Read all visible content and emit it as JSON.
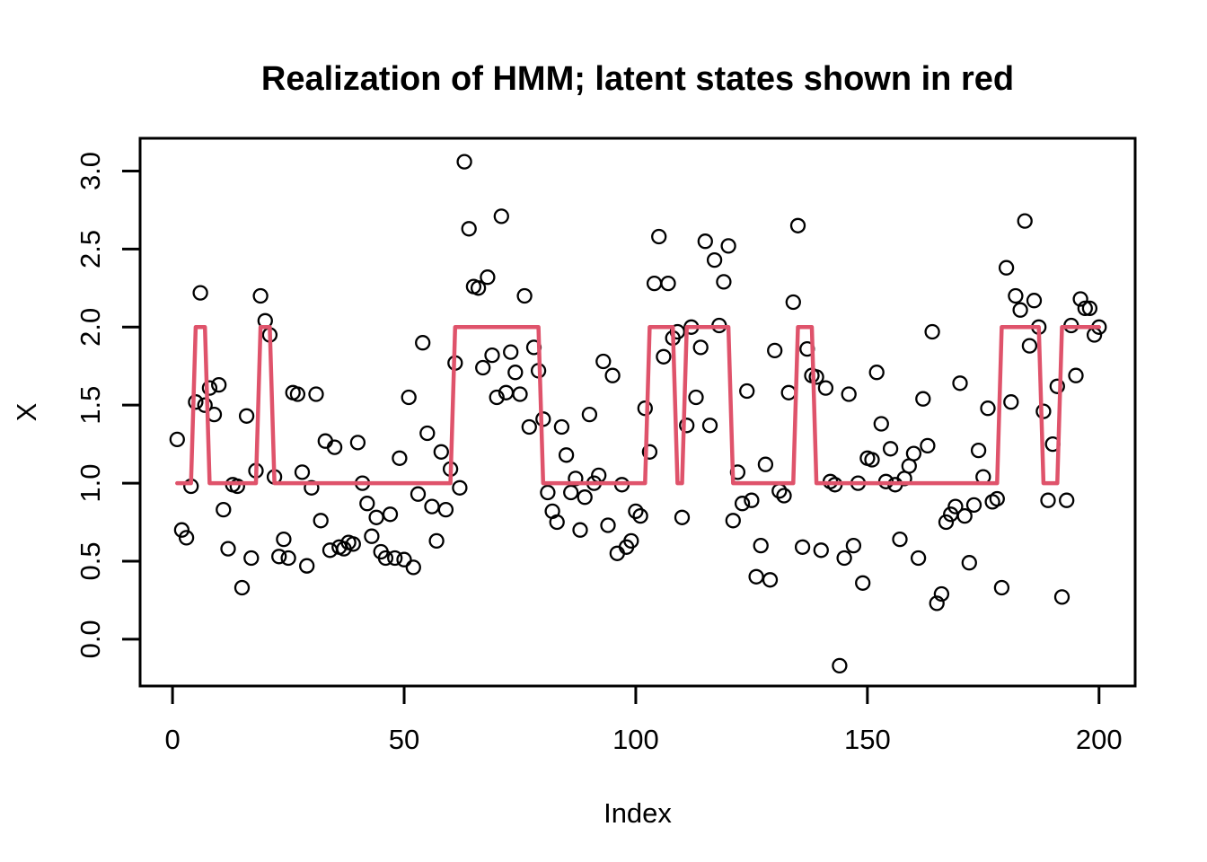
{
  "title": "Realization of HMM; latent states shown in red",
  "colors": {
    "latent_line": "#DF536B",
    "point_stroke": "#000000",
    "axis": "#000000",
    "background": "#FFFFFF"
  },
  "chart_data": {
    "type": "scatter",
    "title": "Realization of HMM; latent states shown in red",
    "xlabel": "Index",
    "ylabel": "X",
    "xlim": [
      -7,
      207.8
    ],
    "ylim": [
      -0.3,
      3.21
    ],
    "grid": false,
    "legend": "none",
    "x_ticks": {
      "values": [
        0,
        50,
        100,
        150,
        200
      ],
      "labels": [
        "0",
        "50",
        "100",
        "150",
        "200"
      ]
    },
    "y_ticks": {
      "values": [
        0,
        0.5,
        1.0,
        1.5,
        2.0,
        2.5,
        3.0
      ],
      "labels": [
        "0.0",
        "0.5",
        "1.0",
        "1.5",
        "2.0",
        "2.5",
        "3.0"
      ]
    },
    "series": [
      {
        "name": "observations",
        "type": "scatter",
        "marker": "open-circle",
        "x": {
          "from": 1,
          "to": 200,
          "step": 1
        },
        "y": [
          1.28,
          0.7,
          0.65,
          0.98,
          1.52,
          2.22,
          1.5,
          1.61,
          1.44,
          1.63,
          0.83,
          0.58,
          0.99,
          0.98,
          0.33,
          1.43,
          0.52,
          1.08,
          2.2,
          2.04,
          1.95,
          1.04,
          0.53,
          0.64,
          0.52,
          1.58,
          1.57,
          1.07,
          0.47,
          0.97,
          1.57,
          0.76,
          1.27,
          0.57,
          1.23,
          0.59,
          0.58,
          0.62,
          0.61,
          1.26,
          1.0,
          0.87,
          0.66,
          0.78,
          0.56,
          0.52,
          0.8,
          0.52,
          1.16,
          0.51,
          1.55,
          0.46,
          0.93,
          1.9,
          1.32,
          0.85,
          0.63,
          1.2,
          0.83,
          1.09,
          1.77,
          0.97,
          3.06,
          2.63,
          2.26,
          2.25,
          1.74,
          2.32,
          1.82,
          1.55,
          2.71,
          1.58,
          1.84,
          1.71,
          1.57,
          2.2,
          1.36,
          1.87,
          1.72,
          1.41,
          0.94,
          0.82,
          0.75,
          1.36,
          1.18,
          0.94,
          1.03,
          0.7,
          0.91,
          1.44,
          1.0,
          1.05,
          1.78,
          0.73,
          1.69,
          0.55,
          0.99,
          0.59,
          0.63,
          0.82,
          0.79,
          1.48,
          1.2,
          2.28,
          2.58,
          1.81,
          2.28,
          1.93,
          1.97,
          0.78,
          1.37,
          2.0,
          1.55,
          1.87,
          2.55,
          1.37,
          2.43,
          2.01,
          2.29,
          2.52,
          0.76,
          1.07,
          0.87,
          1.59,
          0.89,
          0.4,
          0.6,
          1.12,
          0.38,
          1.85,
          0.95,
          0.92,
          1.58,
          2.16,
          2.65,
          0.59,
          1.86,
          1.69,
          1.68,
          0.57,
          1.61,
          1.01,
          0.99,
          -0.17,
          0.52,
          1.57,
          0.6,
          1.0,
          0.36,
          1.16,
          1.15,
          1.71,
          1.38,
          1.01,
          1.22,
          0.99,
          0.64,
          1.03,
          1.11,
          1.19,
          0.52,
          1.54,
          1.24,
          1.97,
          0.23,
          0.29,
          0.75,
          0.8,
          0.85,
          1.64,
          0.79,
          0.49,
          0.86,
          1.21,
          1.04,
          1.48,
          0.88,
          0.9,
          0.33,
          2.38,
          1.52,
          2.2,
          2.11,
          2.68,
          1.88,
          2.17,
          2.0,
          1.46,
          0.89,
          1.25,
          1.62,
          0.27,
          0.89,
          2.01,
          1.69,
          2.18,
          2.12,
          2.12,
          1.95,
          2.0
        ]
      },
      {
        "name": "latent_states",
        "type": "step-line",
        "color": "#DF536B",
        "state_segments": [
          [
            1,
            4,
            1
          ],
          [
            5,
            7,
            2
          ],
          [
            8,
            18,
            1
          ],
          [
            19,
            21,
            2
          ],
          [
            22,
            60,
            1
          ],
          [
            61,
            79,
            2
          ],
          [
            80,
            102,
            1
          ],
          [
            103,
            108,
            2
          ],
          [
            109,
            110,
            1
          ],
          [
            111,
            120,
            2
          ],
          [
            121,
            134,
            1
          ],
          [
            135,
            138,
            2
          ],
          [
            139,
            178,
            1
          ],
          [
            179,
            187,
            2
          ],
          [
            188,
            191,
            1
          ],
          [
            192,
            200,
            2
          ]
        ]
      }
    ]
  }
}
